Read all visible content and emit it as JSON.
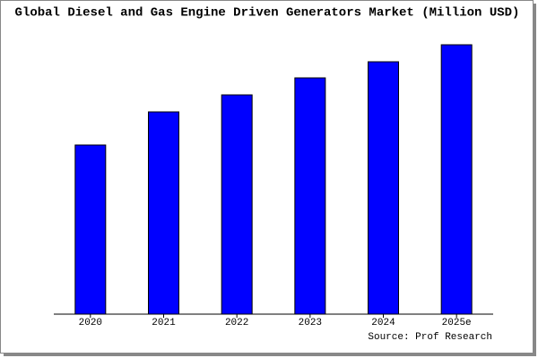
{
  "chart_data": {
    "type": "bar",
    "title": "Global Diesel and Gas Engine Driven Generators Market (Million USD)",
    "categories": [
      "2020",
      "2021",
      "2022",
      "2023",
      "2024",
      "2025e"
    ],
    "values": [
      189,
      226,
      245,
      264,
      282,
      301
    ],
    "color": "#0000ff",
    "ylim": [
      0,
      303
    ],
    "source": "Source: Prof Research"
  }
}
